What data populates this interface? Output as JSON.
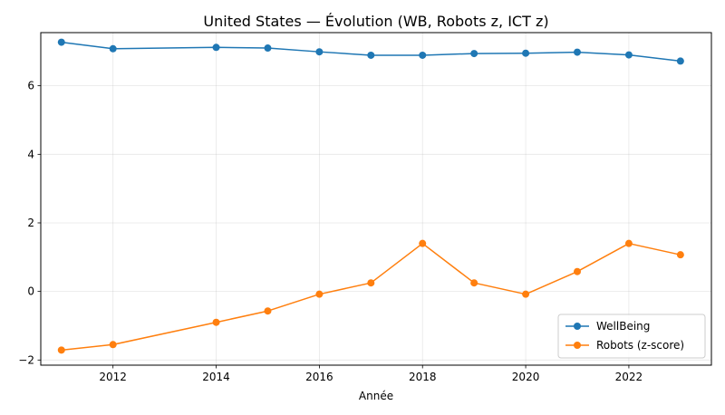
{
  "chart_data": {
    "type": "line",
    "title": "United States — Évolution (WB, Robots z, ICT z)",
    "xlabel": "Année",
    "ylabel": "",
    "xlim": [
      2010.6,
      2023.6
    ],
    "ylim": [
      -2.15,
      7.55
    ],
    "xticks": [
      2012,
      2014,
      2016,
      2018,
      2020,
      2022
    ],
    "yticks": [
      -2,
      0,
      2,
      4,
      6
    ],
    "grid": true,
    "legend_position": "lower-right",
    "series": [
      {
        "name": "WellBeing",
        "color": "#1f77b4",
        "x": [
          2011,
          2012,
          2014,
          2015,
          2016,
          2017,
          2018,
          2019,
          2020,
          2021,
          2022,
          2023
        ],
        "y": [
          7.27,
          7.08,
          7.12,
          7.1,
          6.99,
          6.89,
          6.89,
          6.94,
          6.95,
          6.98,
          6.9,
          6.72
        ]
      },
      {
        "name": "Robots (z-score)",
        "color": "#ff7f0e",
        "x": [
          2011,
          2012,
          2014,
          2015,
          2016,
          2017,
          2018,
          2019,
          2020,
          2021,
          2022,
          2023
        ],
        "y": [
          -1.71,
          -1.55,
          -0.9,
          -0.57,
          -0.08,
          0.25,
          1.4,
          0.25,
          -0.08,
          0.58,
          1.4,
          1.07
        ]
      }
    ]
  }
}
